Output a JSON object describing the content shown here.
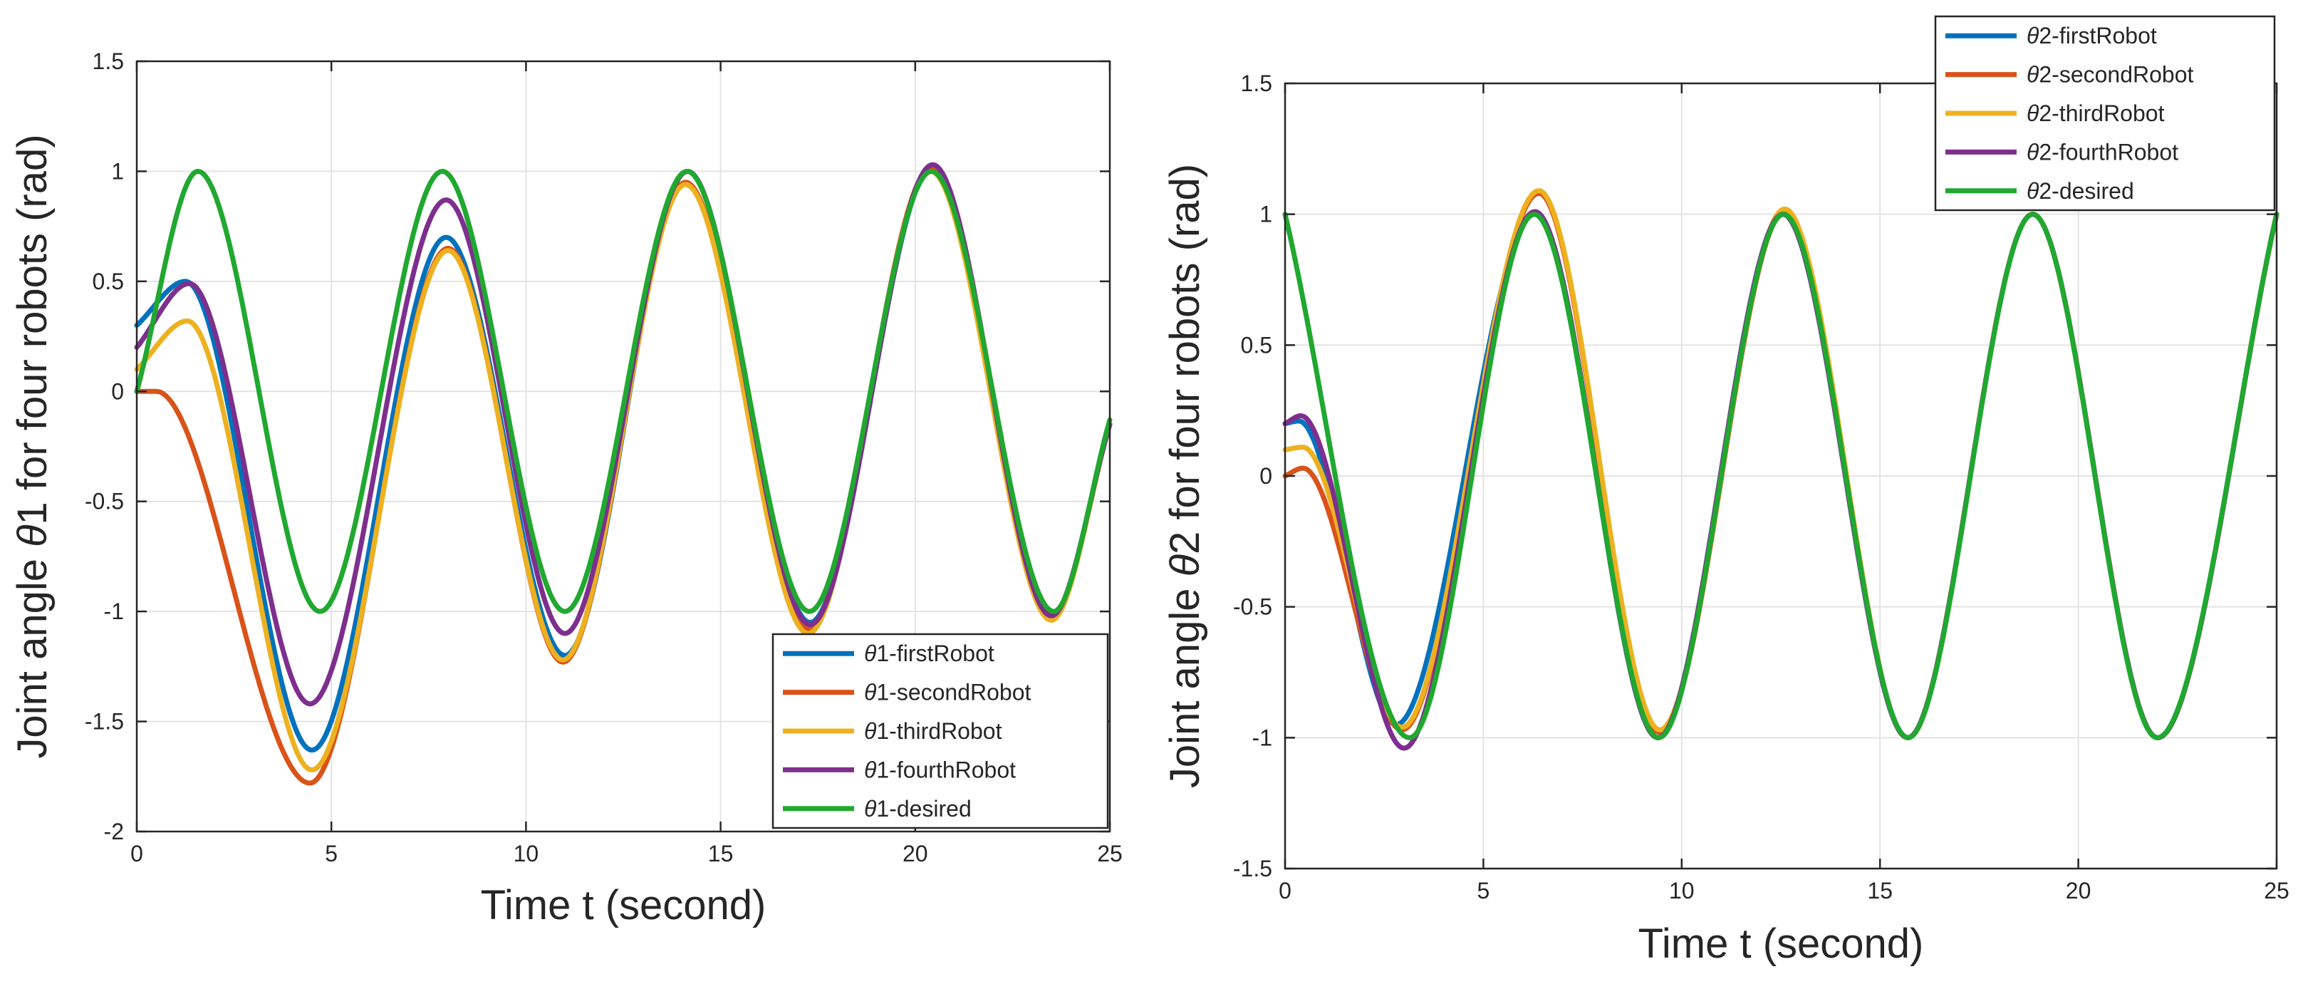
{
  "chart_data": [
    {
      "type": "line",
      "theta_symbol": "θ",
      "ylabel_prefix": "Joint angle ",
      "ylabel_index": "1",
      "ylabel_suffix": " for four robots (rad)",
      "xlabel": "Time t (second)",
      "xlim": [
        0,
        25
      ],
      "ylim": [
        -2,
        1.5
      ],
      "xticks": [
        0,
        5,
        10,
        15,
        20,
        25
      ],
      "xtick_labels": [
        "0",
        "5",
        "10",
        "15",
        "20",
        "25"
      ],
      "yticks": [
        -2,
        -1.5,
        -1,
        -0.5,
        0,
        0.5,
        1,
        1.5
      ],
      "ytick_labels": [
        "-2",
        "-1.5",
        "-1",
        "-0.5",
        "0",
        "0.5",
        "1",
        "1.5"
      ],
      "grid": true,
      "legend_position": "bottom-right",
      "series": [
        {
          "name": "θ1-firstRobot",
          "label_index": "1",
          "label_suffix": "-firstRobot",
          "color": "#0072BD",
          "x": [
            0,
            1.25,
            4.5,
            7.95,
            11.0,
            14.15,
            17.3,
            20.45,
            23.5,
            25
          ],
          "y": [
            0.3,
            0.5,
            -1.63,
            0.7,
            -1.2,
            1.0,
            -1.05,
            1.02,
            -1.02,
            -0.15
          ]
        },
        {
          "name": "θ1-secondRobot",
          "label_index": "1",
          "label_suffix": "-secondRobot",
          "color": "#D95319",
          "x": [
            0,
            0.5,
            4.45,
            8.0,
            10.95,
            14.1,
            17.25,
            20.4,
            23.5,
            25
          ],
          "y": [
            0.0,
            0.0,
            -1.78,
            0.65,
            -1.23,
            0.95,
            -1.08,
            1.01,
            -1.03,
            -0.15
          ]
        },
        {
          "name": "θ1-thirdRobot",
          "label_index": "1",
          "label_suffix": "-thirdRobot",
          "color": "#EDB120",
          "x": [
            0,
            1.3,
            4.5,
            8.0,
            10.95,
            14.1,
            17.25,
            20.4,
            23.5,
            25
          ],
          "y": [
            0.1,
            0.32,
            -1.72,
            0.64,
            -1.22,
            0.94,
            -1.1,
            1.0,
            -1.04,
            -0.15
          ]
        },
        {
          "name": "θ1-fourthRobot",
          "label_index": "1",
          "label_suffix": "-fourthRobot",
          "color": "#7E2F8E",
          "x": [
            0,
            1.35,
            4.45,
            7.95,
            11.0,
            14.15,
            17.3,
            20.45,
            23.5,
            25
          ],
          "y": [
            0.2,
            0.49,
            -1.42,
            0.87,
            -1.1,
            1.0,
            -1.06,
            1.03,
            -1.02,
            -0.15
          ]
        },
        {
          "name": "θ1-desired",
          "label_index": "1",
          "label_suffix": "-desired",
          "color": "#20A830",
          "x": [
            0,
            1.57,
            4.71,
            7.85,
            11.0,
            14.14,
            17.28,
            20.42,
            23.56,
            25
          ],
          "y": [
            0.0,
            1.0,
            -1.0,
            1.0,
            -1.0,
            1.0,
            -1.0,
            1.0,
            -1.0,
            -0.13
          ]
        }
      ]
    },
    {
      "type": "line",
      "theta_symbol": "θ",
      "ylabel_prefix": "Joint angle ",
      "ylabel_index": "2",
      "ylabel_suffix": " for four robots (rad)",
      "xlabel": "Time t (second)",
      "xlim": [
        0,
        25
      ],
      "ylim": [
        -1.5,
        1.5
      ],
      "xticks": [
        0,
        5,
        10,
        15,
        20,
        25
      ],
      "xtick_labels": [
        "0",
        "5",
        "10",
        "15",
        "20",
        "25"
      ],
      "yticks": [
        -1.5,
        -1,
        -0.5,
        0,
        0.5,
        1,
        1.5
      ],
      "ytick_labels": [
        "-1.5",
        "-1",
        "-0.5",
        "0",
        "0.5",
        "1",
        "1.5"
      ],
      "grid": true,
      "legend_position": "top-right",
      "series": [
        {
          "name": "θ2-firstRobot",
          "label_index": "2",
          "label_suffix": "-firstRobot",
          "color": "#0072BD",
          "x": [
            0,
            0.35,
            2.8,
            6.3,
            9.4,
            12.55,
            15.7,
            18.85,
            22.0,
            25
          ],
          "y": [
            0.2,
            0.21,
            -0.95,
            1.0,
            -1.0,
            1.0,
            -1.0,
            1.0,
            -1.0,
            1.0
          ]
        },
        {
          "name": "θ2-secondRobot",
          "label_index": "2",
          "label_suffix": "-secondRobot",
          "color": "#D95319",
          "x": [
            0,
            0.45,
            2.95,
            6.4,
            9.45,
            12.6,
            15.7,
            18.85,
            22.0,
            25
          ],
          "y": [
            0.0,
            0.03,
            -0.97,
            1.08,
            -0.98,
            1.01,
            -1.0,
            1.0,
            -1.0,
            1.0
          ]
        },
        {
          "name": "θ2-thirdRobot",
          "label_index": "2",
          "label_suffix": "-thirdRobot",
          "color": "#EDB120",
          "x": [
            0,
            0.45,
            2.95,
            6.4,
            9.45,
            12.6,
            15.7,
            18.85,
            22.0,
            25
          ],
          "y": [
            0.1,
            0.11,
            -0.96,
            1.09,
            -0.97,
            1.02,
            -1.0,
            1.0,
            -1.0,
            1.0
          ]
        },
        {
          "name": "θ2-fourthRobot",
          "label_index": "2",
          "label_suffix": "-fourthRobot",
          "color": "#7E2F8E",
          "x": [
            0,
            0.4,
            3.0,
            6.3,
            9.4,
            12.55,
            15.7,
            18.85,
            22.0,
            25
          ],
          "y": [
            0.2,
            0.23,
            -1.04,
            1.01,
            -1.0,
            1.0,
            -1.0,
            1.0,
            -1.0,
            1.0
          ]
        },
        {
          "name": "θ2-desired",
          "label_index": "2",
          "label_suffix": "-desired",
          "color": "#20A830",
          "x": [
            0,
            3.14,
            6.28,
            9.42,
            12.57,
            15.71,
            18.85,
            21.99,
            25
          ],
          "y": [
            1.0,
            -1.0,
            1.0,
            -1.0,
            1.0,
            -1.0,
            1.0,
            -1.0,
            1.0
          ]
        }
      ]
    }
  ]
}
